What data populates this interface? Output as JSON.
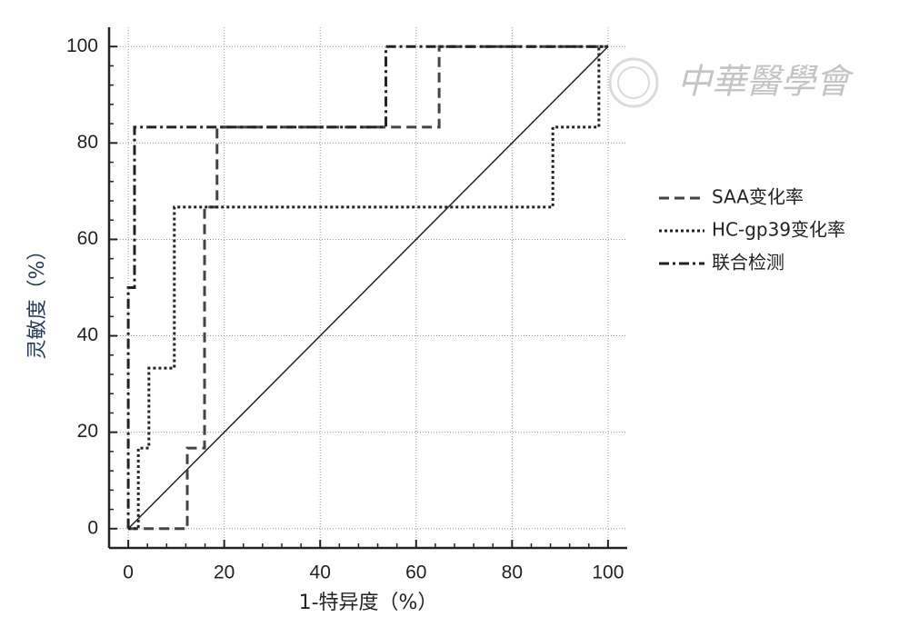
{
  "chart_data": {
    "type": "line",
    "xlabel": "1-特异度（%）",
    "ylabel": "灵敏度（%）",
    "watermark": "中華醫學會",
    "xlim": [
      -4,
      104
    ],
    "ylim": [
      -4,
      104
    ],
    "xticks": [
      0,
      20,
      40,
      60,
      80,
      100
    ],
    "yticks": [
      0,
      20,
      40,
      60,
      80,
      100
    ],
    "grid": true,
    "diagonal": true,
    "legend": "right",
    "series": [
      {
        "name": "SAA变化率",
        "color": "#444444",
        "line_style": "dashed",
        "x": [
          0,
          12.3,
          12.3,
          15.9,
          15.9,
          18.5,
          18.5,
          64.8,
          64.8,
          100
        ],
        "values": [
          0,
          0,
          16.7,
          16.7,
          66.7,
          66.7,
          83.3,
          83.3,
          100,
          100
        ]
      },
      {
        "name": "HC-gp39变化率",
        "color": "#222222",
        "line_style": "dotted",
        "x": [
          0,
          2.1,
          2.1,
          4.3,
          4.3,
          9.6,
          9.6,
          88.5,
          88.5,
          98.1,
          98.1,
          100
        ],
        "values": [
          0,
          0,
          16.7,
          16.7,
          33.3,
          33.3,
          66.7,
          66.7,
          83.3,
          83.3,
          100,
          100
        ]
      },
      {
        "name": "联合检测",
        "color": "#222222",
        "line_style": "dashdot",
        "x": [
          0,
          0,
          1.3,
          1.3,
          53.7,
          53.7,
          100
        ],
        "values": [
          0,
          50,
          50,
          83.3,
          83.3,
          100,
          100
        ]
      }
    ]
  }
}
